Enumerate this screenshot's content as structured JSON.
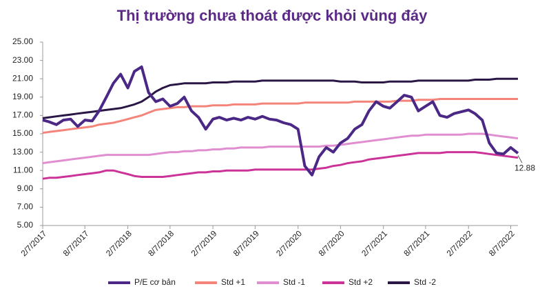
{
  "chart_data": {
    "type": "line",
    "title": "Thị trường chưa thoát được khỏi vùng đáy",
    "x": [
      "2/7/2017",
      "3/7/2017",
      "4/7/2017",
      "5/7/2017",
      "6/7/2017",
      "7/7/2017",
      "8/7/2017",
      "9/7/2017",
      "10/7/2017",
      "11/7/2017",
      "12/7/2017",
      "1/7/2018",
      "2/7/2018",
      "3/7/2018",
      "4/7/2018",
      "5/7/2018",
      "6/7/2018",
      "7/7/2018",
      "8/7/2018",
      "9/7/2018",
      "10/7/2018",
      "11/7/2018",
      "12/7/2018",
      "1/7/2019",
      "2/7/2019",
      "3/7/2019",
      "4/7/2019",
      "5/7/2019",
      "6/7/2019",
      "7/7/2019",
      "8/7/2019",
      "9/7/2019",
      "10/7/2019",
      "11/7/2019",
      "12/7/2019",
      "1/7/2020",
      "2/7/2020",
      "3/7/2020",
      "4/7/2020",
      "5/7/2020",
      "6/7/2020",
      "7/7/2020",
      "8/7/2020",
      "9/7/2020",
      "10/7/2020",
      "11/7/2020",
      "12/7/2020",
      "1/7/2021",
      "2/7/2021",
      "3/7/2021",
      "4/7/2021",
      "5/7/2021",
      "6/7/2021",
      "7/7/2021",
      "8/7/2021",
      "9/7/2021",
      "10/7/2021",
      "11/7/2021",
      "12/7/2021",
      "1/7/2022",
      "2/7/2022",
      "3/7/2022",
      "4/7/2022",
      "5/7/2022",
      "6/7/2022",
      "7/7/2022",
      "8/7/2022",
      "9/7/2022"
    ],
    "series": [
      {
        "name": "P/E cơ bản",
        "color": "#4b2885",
        "width": 4,
        "values": [
          16.5,
          16.3,
          16.0,
          16.5,
          16.6,
          15.8,
          16.5,
          16.4,
          17.5,
          19.0,
          20.5,
          21.5,
          20.0,
          21.8,
          22.3,
          19.5,
          18.5,
          18.8,
          18.0,
          18.3,
          19.0,
          17.5,
          16.8,
          15.5,
          16.6,
          16.8,
          16.5,
          16.7,
          16.5,
          16.8,
          16.6,
          16.9,
          16.6,
          16.5,
          16.2,
          16.0,
          15.5,
          11.5,
          10.5,
          12.5,
          13.5,
          13.0,
          14.0,
          14.5,
          15.5,
          16.0,
          17.5,
          18.5,
          18.0,
          17.8,
          18.5,
          19.2,
          19.0,
          17.5,
          18.0,
          18.5,
          17.0,
          16.8,
          17.2,
          17.4,
          17.6,
          17.2,
          16.5,
          14.0,
          12.9,
          12.8,
          13.5,
          12.88
        ]
      },
      {
        "name": "Std +1",
        "color": "#f4837a",
        "width": 3,
        "values": [
          15.1,
          15.2,
          15.3,
          15.4,
          15.5,
          15.6,
          15.7,
          15.8,
          16.0,
          16.1,
          16.2,
          16.4,
          16.6,
          16.8,
          17.0,
          17.3,
          17.6,
          17.7,
          17.8,
          17.9,
          17.9,
          18.0,
          18.0,
          18.0,
          18.1,
          18.1,
          18.1,
          18.2,
          18.2,
          18.2,
          18.2,
          18.3,
          18.3,
          18.3,
          18.3,
          18.3,
          18.3,
          18.4,
          18.4,
          18.4,
          18.4,
          18.4,
          18.4,
          18.4,
          18.5,
          18.5,
          18.5,
          18.5,
          18.5,
          18.5,
          18.6,
          18.6,
          18.6,
          18.7,
          18.7,
          18.7,
          18.8,
          18.8,
          18.8,
          18.8,
          18.8,
          18.8,
          18.8,
          18.8,
          18.8,
          18.8,
          18.8,
          18.8
        ]
      },
      {
        "name": "Std -1",
        "color": "#e08ed0",
        "width": 3,
        "values": [
          11.8,
          11.9,
          12.0,
          12.1,
          12.2,
          12.3,
          12.4,
          12.5,
          12.6,
          12.7,
          12.7,
          12.7,
          12.7,
          12.7,
          12.7,
          12.7,
          12.8,
          12.9,
          13.0,
          13.0,
          13.1,
          13.1,
          13.2,
          13.2,
          13.3,
          13.3,
          13.4,
          13.4,
          13.5,
          13.5,
          13.5,
          13.5,
          13.6,
          13.6,
          13.6,
          13.6,
          13.6,
          13.6,
          13.6,
          13.6,
          13.7,
          13.7,
          13.8,
          13.9,
          14.0,
          14.1,
          14.2,
          14.3,
          14.4,
          14.5,
          14.6,
          14.7,
          14.8,
          14.8,
          14.9,
          14.9,
          14.9,
          14.9,
          14.9,
          14.9,
          15.0,
          15.0,
          15.0,
          14.9,
          14.8,
          14.7,
          14.6,
          14.5
        ]
      },
      {
        "name": "Std +2",
        "color": "#cc3399",
        "width": 3,
        "values": [
          10.1,
          10.2,
          10.2,
          10.3,
          10.4,
          10.5,
          10.6,
          10.7,
          10.8,
          11.0,
          11.0,
          10.8,
          10.6,
          10.4,
          10.3,
          10.3,
          10.3,
          10.3,
          10.4,
          10.5,
          10.6,
          10.7,
          10.8,
          10.8,
          10.9,
          10.9,
          11.0,
          11.0,
          11.0,
          11.0,
          11.1,
          11.1,
          11.1,
          11.1,
          11.1,
          11.1,
          11.1,
          11.1,
          11.1,
          11.2,
          11.3,
          11.5,
          11.6,
          11.8,
          11.9,
          12.0,
          12.2,
          12.3,
          12.4,
          12.5,
          12.6,
          12.7,
          12.8,
          12.9,
          12.9,
          12.9,
          12.9,
          13.0,
          13.0,
          13.0,
          13.0,
          13.0,
          12.9,
          12.8,
          12.7,
          12.6,
          12.5,
          12.4
        ]
      },
      {
        "name": "Std -2",
        "color": "#2a1745",
        "width": 3,
        "values": [
          16.7,
          16.8,
          16.9,
          17.0,
          17.1,
          17.2,
          17.3,
          17.4,
          17.5,
          17.6,
          17.7,
          17.8,
          18.0,
          18.2,
          18.5,
          19.0,
          19.6,
          20.0,
          20.3,
          20.4,
          20.5,
          20.5,
          20.5,
          20.5,
          20.6,
          20.6,
          20.6,
          20.7,
          20.7,
          20.7,
          20.7,
          20.8,
          20.8,
          20.8,
          20.8,
          20.8,
          20.8,
          20.8,
          20.8,
          20.8,
          20.8,
          20.8,
          20.7,
          20.7,
          20.7,
          20.6,
          20.6,
          20.6,
          20.6,
          20.7,
          20.7,
          20.7,
          20.7,
          20.8,
          20.8,
          20.8,
          20.8,
          20.8,
          20.8,
          20.8,
          20.8,
          20.9,
          20.9,
          20.9,
          21.0,
          21.0,
          21.0,
          21.0
        ]
      }
    ],
    "ylim": [
      5,
      25
    ],
    "yticks": [
      {
        "value": 5,
        "label": "5.00"
      },
      {
        "value": 7,
        "label": "7.00"
      },
      {
        "value": 9,
        "label": "9.00"
      },
      {
        "value": 11,
        "label": "11.00"
      },
      {
        "value": 13,
        "label": "13.00"
      },
      {
        "value": 15,
        "label": "15.00"
      },
      {
        "value": 17,
        "label": "17.00"
      },
      {
        "value": 19,
        "label": "19.00"
      },
      {
        "value": 21,
        "label": "21.00"
      },
      {
        "value": 23,
        "label": "23.00"
      },
      {
        "value": 25,
        "label": "25.00"
      }
    ],
    "xticks": [
      "2/7/2017",
      "8/7/2017",
      "2/7/2018",
      "8/7/2018",
      "2/7/2019",
      "8/7/2019",
      "2/7/2020",
      "8/7/2020",
      "2/7/2021",
      "8/7/2021",
      "2/7/2022",
      "8/7/2022"
    ],
    "legend": "bottom"
  }
}
